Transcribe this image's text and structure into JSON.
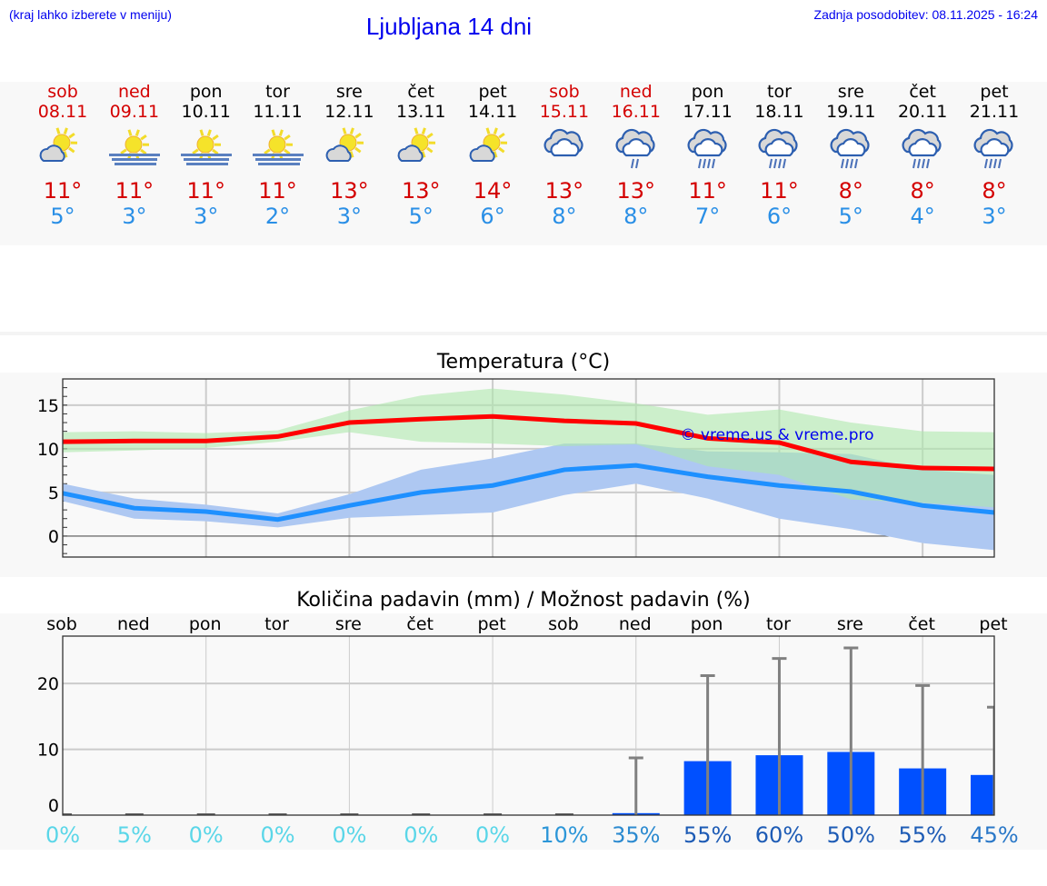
{
  "header": {
    "hint": "(kraj lahko izberete v meniju)",
    "title": "Ljubljana 14 dni",
    "updated": "Zadnja posodobitev: 08.11.2025 - 16:24"
  },
  "days": [
    {
      "name": "sob",
      "date": "08.11",
      "weekend": true,
      "icon": "sun-cloud",
      "max": "11°",
      "min": "5°"
    },
    {
      "name": "ned",
      "date": "09.11",
      "weekend": true,
      "icon": "sun-fog",
      "max": "11°",
      "min": "3°"
    },
    {
      "name": "pon",
      "date": "10.11",
      "weekend": false,
      "icon": "sun-fog",
      "max": "11°",
      "min": "3°"
    },
    {
      "name": "tor",
      "date": "11.11",
      "weekend": false,
      "icon": "sun-fog",
      "max": "11°",
      "min": "2°"
    },
    {
      "name": "sre",
      "date": "12.11",
      "weekend": false,
      "icon": "sun-cloud",
      "max": "13°",
      "min": "3°"
    },
    {
      "name": "čet",
      "date": "13.11",
      "weekend": false,
      "icon": "sun-cloud",
      "max": "13°",
      "min": "5°"
    },
    {
      "name": "pet",
      "date": "14.11",
      "weekend": false,
      "icon": "sun-cloud",
      "max": "14°",
      "min": "6°"
    },
    {
      "name": "sob",
      "date": "15.11",
      "weekend": true,
      "icon": "cloudy",
      "max": "13°",
      "min": "8°"
    },
    {
      "name": "ned",
      "date": "16.11",
      "weekend": true,
      "icon": "cloud-light-rain",
      "max": "13°",
      "min": "8°"
    },
    {
      "name": "pon",
      "date": "17.11",
      "weekend": false,
      "icon": "cloud-rain",
      "max": "11°",
      "min": "7°"
    },
    {
      "name": "tor",
      "date": "18.11",
      "weekend": false,
      "icon": "cloud-rain",
      "max": "11°",
      "min": "6°"
    },
    {
      "name": "sre",
      "date": "19.11",
      "weekend": false,
      "icon": "cloud-rain",
      "max": "8°",
      "min": "5°"
    },
    {
      "name": "čet",
      "date": "20.11",
      "weekend": false,
      "icon": "cloud-rain",
      "max": "8°",
      "min": "4°"
    },
    {
      "name": "pet",
      "date": "21.11",
      "weekend": false,
      "icon": "cloud-rain",
      "max": "8°",
      "min": "3°"
    }
  ],
  "chart_data": [
    {
      "type": "line",
      "title": "Temperatura (°C)",
      "watermark": "© vreme.us & vreme.pro",
      "ylim": [
        -2.4,
        18
      ],
      "yticks": [
        0,
        5,
        10,
        15
      ],
      "grid": true,
      "series": [
        {
          "key": "max",
          "color": "#ff0000",
          "values": [
            10.8,
            10.9,
            10.9,
            11.4,
            13.0,
            13.4,
            13.7,
            13.2,
            12.9,
            11.2,
            10.7,
            8.5,
            7.8,
            7.7
          ]
        },
        {
          "key": "max_range",
          "color": "#aee8ac",
          "upper": [
            11.9,
            12.0,
            11.8,
            12.1,
            14.4,
            16.1,
            16.9,
            16.2,
            15.2,
            13.9,
            14.5,
            13.0,
            12.0,
            11.9
          ],
          "lower": [
            9.6,
            9.8,
            10.1,
            10.8,
            11.9,
            10.8,
            10.6,
            10.3,
            10.5,
            8.0,
            7.0,
            4.2,
            3.8,
            3.3
          ]
        },
        {
          "key": "min",
          "color": "#1e90ff",
          "values": [
            4.9,
            3.2,
            2.8,
            1.9,
            3.5,
            5.0,
            5.8,
            7.6,
            8.1,
            6.8,
            5.8,
            5.1,
            3.5,
            2.7
          ]
        },
        {
          "key": "min_range",
          "color": "#aec8f2",
          "upper": [
            6.0,
            4.3,
            3.6,
            2.6,
            4.8,
            7.6,
            8.9,
            10.6,
            10.6,
            9.7,
            9.6,
            9.4,
            7.6,
            7.0
          ],
          "lower": [
            4.0,
            2.0,
            1.7,
            1.0,
            2.1,
            2.4,
            2.7,
            4.7,
            6.0,
            4.3,
            2.0,
            0.8,
            -0.8,
            -1.6
          ]
        }
      ]
    },
    {
      "type": "bar",
      "title": "Količina padavin (mm) / Možnost padavin (%)",
      "categories": [
        "sob",
        "ned",
        "pon",
        "tor",
        "sre",
        "čet",
        "pet",
        "sob",
        "ned",
        "pon",
        "tor",
        "sre",
        "čet",
        "pet"
      ],
      "ylim": [
        0,
        27.2
      ],
      "yticks": [
        0,
        10,
        20
      ],
      "grid": true,
      "bar_color": "#0050ff",
      "values": [
        0,
        0,
        0,
        0,
        0,
        0,
        0,
        0,
        0.3,
        8.2,
        9.1,
        9.6,
        7.1,
        6.1
      ],
      "error_top": [
        0,
        0,
        0,
        0,
        0,
        0,
        0,
        0,
        8.7,
        21.2,
        23.8,
        25.4,
        19.7,
        16.4
      ],
      "chance": [
        "0%",
        "5%",
        "0%",
        "0%",
        "0%",
        "0%",
        "0%",
        "10%",
        "35%",
        "55%",
        "60%",
        "50%",
        "55%",
        "45%"
      ],
      "chance_colors": [
        "#5ad6e8",
        "#5ad6e8",
        "#5ad6e8",
        "#5ad6e8",
        "#5ad6e8",
        "#5ad6e8",
        "#5ad6e8",
        "#2c96d8",
        "#2c8ad0",
        "#1d5bb5",
        "#1d5bb5",
        "#1d5bb5",
        "#1d5bb5",
        "#2a78c8"
      ]
    }
  ]
}
